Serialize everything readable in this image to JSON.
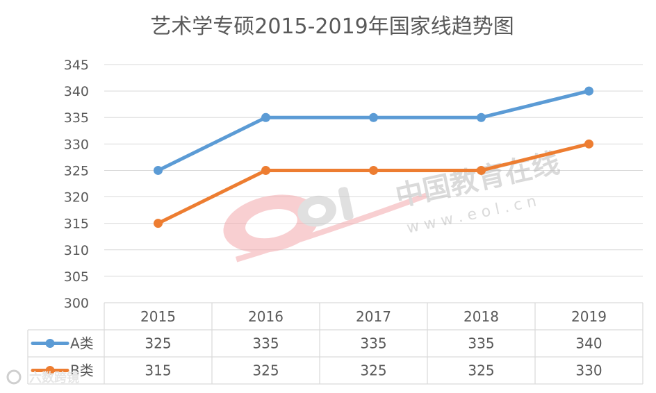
{
  "chart_data": {
    "type": "line",
    "title": "艺术学专硕2015-2019年国家线趋势图",
    "categories": [
      "2015",
      "2016",
      "2017",
      "2018",
      "2019"
    ],
    "series": [
      {
        "name": "A类",
        "values": [
          325,
          335,
          335,
          335,
          340
        ],
        "color": "#5b9bd5"
      },
      {
        "name": "B类",
        "values": [
          315,
          325,
          325,
          325,
          330
        ],
        "color": "#ed7d31"
      }
    ],
    "ylim": [
      300,
      345
    ],
    "ytick_step": 5,
    "grid": true,
    "legend": "data-table",
    "data_table": true
  },
  "watermark": {
    "logo_text": "eol",
    "brand": "中国教育在线",
    "url": "w w w . e o l . c n",
    "corner_badge": "六数跨镜"
  }
}
